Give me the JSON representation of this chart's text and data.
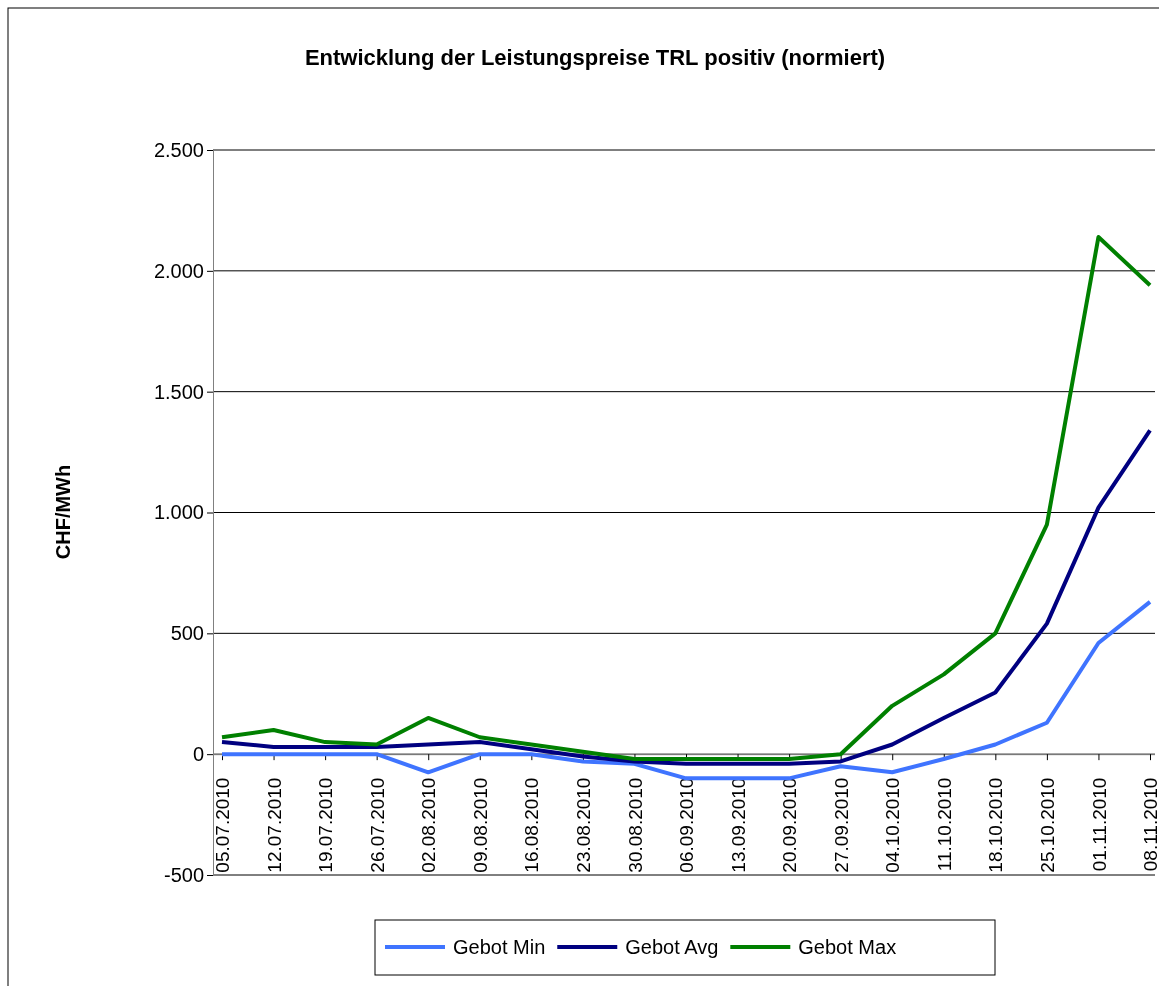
{
  "chart_data": {
    "type": "line",
    "title": "Entwicklung der Leistungspreise TRL positiv (normiert)",
    "ylabel": "CHF/MWh",
    "categories": [
      "05.07.2010",
      "12.07.2010",
      "19.07.2010",
      "26.07.2010",
      "02.08.2010",
      "09.08.2010",
      "16.08.2010",
      "23.08.2010",
      "30.08.2010",
      "06.09.2010",
      "13.09.2010",
      "20.09.2010",
      "27.09.2010",
      "04.10.2010",
      "11.10.2010",
      "18.10.2010",
      "25.10.2010",
      "01.11.2010",
      "08.11.2010"
    ],
    "series": [
      {
        "name": "Gebot Min",
        "color": "#3f74ff",
        "values": [
          0,
          0,
          0,
          0,
          -75,
          0,
          0,
          -30,
          -40,
          -100,
          -100,
          -100,
          -50,
          -75,
          -20,
          40,
          130,
          460,
          630
        ]
      },
      {
        "name": "Gebot Avg",
        "color": "#000080",
        "values": [
          50,
          30,
          30,
          30,
          40,
          50,
          20,
          -10,
          -30,
          -40,
          -40,
          -40,
          -30,
          40,
          150,
          255,
          540,
          1020,
          1340
        ]
      },
      {
        "name": "Gebot Max",
        "color": "#008000",
        "values": [
          70,
          100,
          50,
          40,
          150,
          70,
          40,
          10,
          -20,
          -20,
          -20,
          -20,
          0,
          200,
          330,
          500,
          950,
          2140,
          1940
        ]
      }
    ],
    "ylim": [
      -500,
      2500
    ],
    "yticks": [
      {
        "value": -500,
        "label": "-500"
      },
      {
        "value": 0,
        "label": "0"
      },
      {
        "value": 500,
        "label": "500"
      },
      {
        "value": 1000,
        "label": "1.000"
      },
      {
        "value": 1500,
        "label": "1.500"
      },
      {
        "value": 2000,
        "label": "2.000"
      },
      {
        "value": 2500,
        "label": "2.500"
      }
    ],
    "grid": "y",
    "legend": "bottom",
    "marker": "none",
    "line_style": "solid"
  }
}
